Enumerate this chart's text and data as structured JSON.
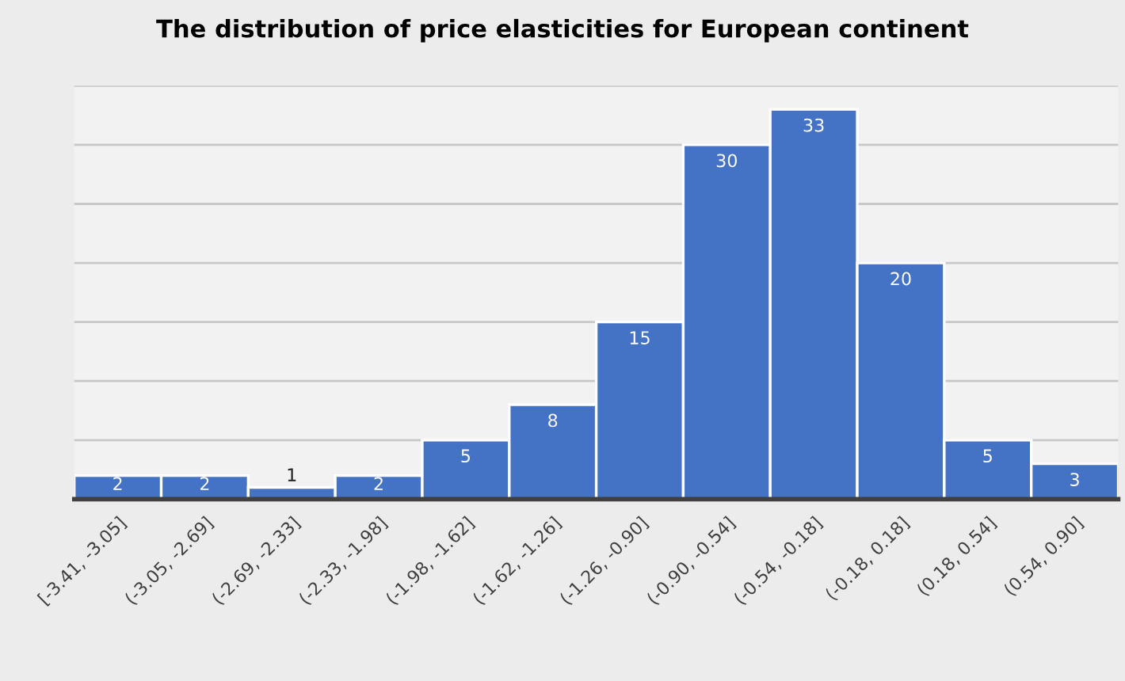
{
  "chart_data": {
    "type": "bar",
    "title": "The distribution of price elasticities for European continent",
    "categories": [
      "[-3.41, -3.05]",
      "(-3.05, -2.69]",
      "(-2.69, -2.33]",
      "(-2.33, -1.98]",
      "(-1.98, -1.62]",
      "(-1.62, -1.26]",
      "(-1.26, -0.90]",
      "(-0.90, -0.54]",
      "(-0.54, -0.18]",
      "(-0.18, 0.18]",
      "(0.18, 0.54]",
      "(0.54, 0.90]"
    ],
    "values": [
      2,
      2,
      1,
      2,
      5,
      8,
      15,
      30,
      33,
      20,
      5,
      3
    ],
    "color": "#4472c4",
    "ylim": [
      0,
      35
    ],
    "yticks": [
      {
        "value": 0,
        "label": null
      },
      {
        "value": 5,
        "label": null
      },
      {
        "value": 10,
        "label": null
      },
      {
        "value": 15,
        "label": null
      },
      {
        "value": 20,
        "label": null
      },
      {
        "value": 25,
        "label": null
      },
      {
        "value": 30,
        "label": null
      },
      {
        "value": 35,
        "label": null
      }
    ],
    "tick_labels": "x",
    "grid": "y",
    "data_labels": true
  }
}
